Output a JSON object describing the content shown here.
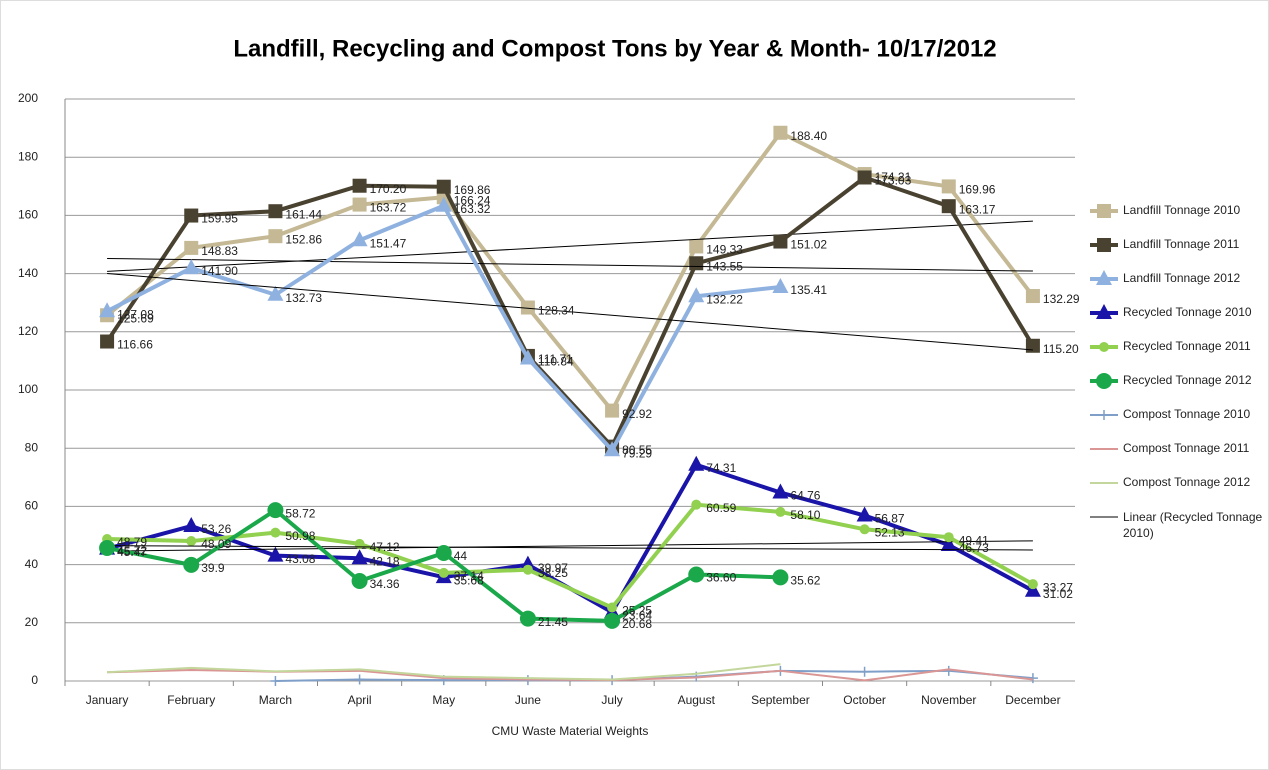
{
  "chart_data": {
    "type": "line",
    "title": "Landfill, Recycling and Compost Tons by Year & Month- 10/17/2012",
    "x_label": "CMU Waste Material Weights",
    "categories": [
      "January",
      "February",
      "March",
      "April",
      "May",
      "June",
      "July",
      "August",
      "September",
      "October",
      "November",
      "December"
    ],
    "ylim": [
      0,
      200
    ],
    "yticks": [
      0,
      20,
      40,
      60,
      80,
      100,
      120,
      140,
      160,
      180,
      200
    ],
    "grid": true,
    "legend": "right",
    "series": [
      {
        "name": "Landfill Tonnage 2010",
        "color": "#c4b994",
        "marker": "square",
        "line_width": 4,
        "trendline": true,
        "values": [
          125.69,
          148.83,
          152.86,
          163.72,
          166.24,
          128.34,
          92.92,
          149.33,
          188.4,
          174.21,
          169.96,
          132.29
        ],
        "value_labels": [
          "125.69",
          "148.83",
          "152.86",
          "163.72",
          "166.24",
          "128.34",
          "92.92",
          "149.33",
          "188.40",
          "174.21",
          "169.96",
          "132.29"
        ]
      },
      {
        "name": "Landfill Tonnage 2011",
        "color": "#4a4230",
        "marker": "square",
        "line_width": 4,
        "trendline": true,
        "values": [
          116.66,
          159.95,
          161.44,
          170.2,
          169.86,
          111.71,
          80.55,
          143.55,
          151.02,
          173.03,
          163.17,
          115.2
        ],
        "value_labels": [
          "116.66",
          "159.95",
          "161.44",
          "170.20",
          "169.86",
          "111.71",
          "80.55",
          "143.55",
          "151.02",
          "173.03",
          "163.17",
          "115.20"
        ]
      },
      {
        "name": "Landfill Tonnage 2012",
        "color": "#8fb1df",
        "marker": "triangle",
        "line_width": 4,
        "trendline": true,
        "values": [
          127.08,
          141.9,
          132.73,
          151.47,
          163.32,
          110.84,
          79.29,
          132.22,
          135.41,
          null,
          null,
          null
        ],
        "value_labels": [
          "127.08",
          "141.90",
          "132.73",
          "151.47",
          "163.32",
          "110.84",
          "79.29",
          "132.22",
          "135.41",
          null,
          null,
          null
        ]
      },
      {
        "name": "Recycled Tonnage 2010",
        "color": "#1a14a8",
        "marker": "triangle",
        "line_width": 4,
        "trendline": true,
        "values": [
          45.47,
          53.26,
          43.08,
          42.18,
          35.68,
          39.97,
          23.64,
          74.31,
          64.76,
          56.87,
          46.73,
          31.02
        ],
        "value_labels": [
          "45.47",
          "53.26",
          "43.08",
          "42.18",
          "35.68",
          "39.97",
          "23.64",
          "74.31",
          "64.76",
          "56.87",
          "46.73",
          "31.02"
        ]
      },
      {
        "name": "Recycled Tonnage 2011",
        "color": "#92d050",
        "marker": "circle",
        "line_width": 4,
        "trendline": true,
        "values": [
          48.79,
          48.09,
          50.98,
          47.12,
          37.14,
          38.25,
          25.25,
          60.59,
          58.1,
          52.13,
          49.41,
          33.27
        ],
        "value_labels": [
          "48.79",
          "48.09",
          "50.98",
          "47.12",
          "37.14",
          "38.25",
          "25.25",
          "60.59",
          "58.10",
          "52.13",
          "49.41",
          "33.27"
        ]
      },
      {
        "name": "Recycled Tonnage 2012",
        "color": "#1aa84a",
        "marker": "bigcircle",
        "line_width": 4,
        "values": [
          45.72,
          39.9,
          58.72,
          34.36,
          44,
          21.45,
          20.68,
          36.6,
          35.62,
          null,
          null,
          null
        ],
        "value_labels": [
          "45.72",
          "39.9",
          "58.72",
          "34.36",
          "44",
          "21.45",
          "20.68",
          "36.60",
          "35.62",
          null,
          null,
          null
        ]
      },
      {
        "name": "Compost Tonnage 2010",
        "color": "#7f9fc8",
        "marker": "plus",
        "line_width": 2,
        "values": [
          null,
          null,
          0,
          0.5,
          0.3,
          0.3,
          0.3,
          1.5,
          3.5,
          3.2,
          3.5,
          1
        ]
      },
      {
        "name": "Compost Tonnage 2011",
        "color": "#d99694",
        "marker": "none",
        "line_width": 2,
        "values": [
          3,
          3.8,
          3.2,
          3.5,
          1,
          0.5,
          0.3,
          1.2,
          3.5,
          0.2,
          4,
          0.5
        ]
      },
      {
        "name": "Compost Tonnage 2012",
        "color": "#c3d69b",
        "marker": "none",
        "line_width": 2,
        "values": [
          3,
          4.5,
          3.3,
          4,
          1.5,
          1,
          0.5,
          2.5,
          5.8,
          null,
          null,
          null
        ]
      }
    ],
    "trend_legend": {
      "name": "Linear (Recycled Tonnage 2010)",
      "color": "#000000"
    }
  }
}
